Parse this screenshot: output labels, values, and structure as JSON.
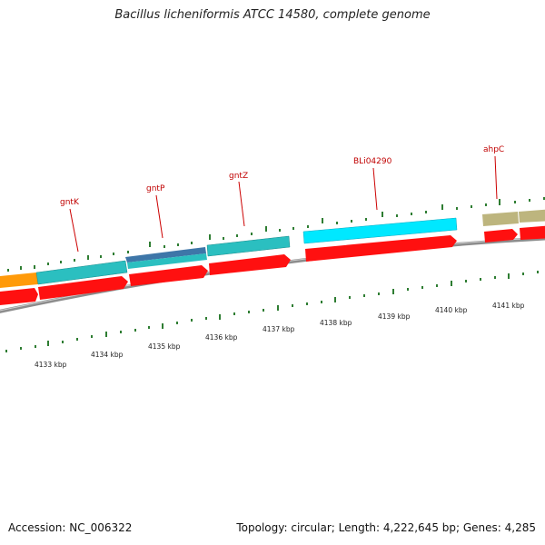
{
  "title": "Bacillus licheniformis ATCC 14580, complete genome",
  "footer": {
    "accession": "Accession: NC_006322",
    "stats": "Topology: circular; Length: 4,222,645 bp; Genes: 4,285"
  },
  "colors": {
    "cds_forward": "#2bc4c4",
    "cds_reverse": "#ff0000",
    "gene_gntK": "#2bc4c4",
    "gene_gntP": "#3a78b0",
    "gene_gntZ": "#2bc4c4",
    "gene_BLi04290": "#00e5ff",
    "gene_ahpC": "#b9b37a",
    "orange_feature": "#ff9900",
    "label_red": "#cc0000",
    "tick_green": "#2e7d32",
    "backbone": "#888888"
  },
  "gene_labels": [
    "gntK",
    "gntP",
    "gntZ",
    "BLi04290",
    "ahpC"
  ],
  "kbp_labels": [
    "4133 kbp",
    "4134 kbp",
    "4135 kbp",
    "4136 kbp",
    "4137 kbp",
    "4138 kbp",
    "4139 kbp",
    "4140 kbp",
    "4141 kbp"
  ]
}
